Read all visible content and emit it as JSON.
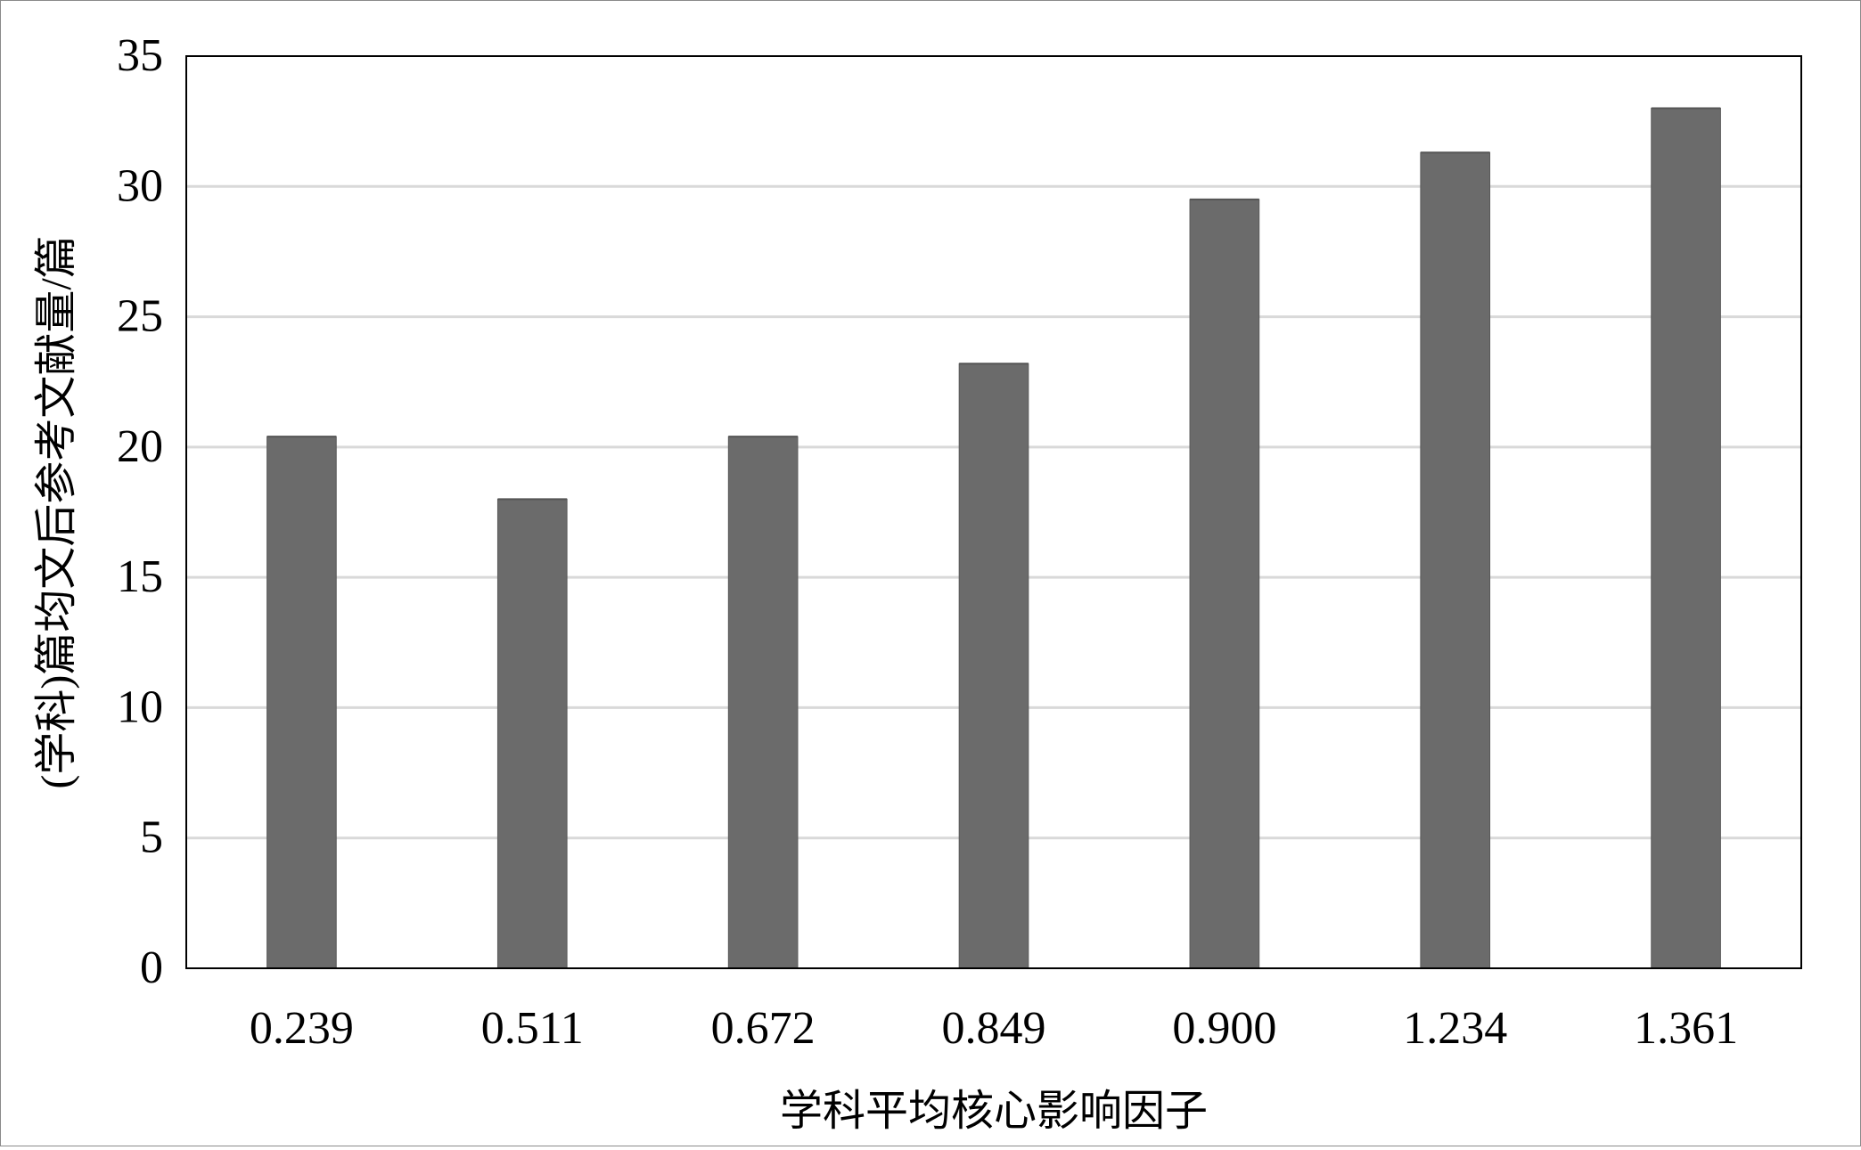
{
  "chart_data": {
    "type": "bar",
    "title": "",
    "xlabel": "学科平均核心影响因子",
    "ylabel": "(学科)篇均文后参考文献量/篇",
    "categories": [
      "0.239",
      "0.511",
      "0.672",
      "0.849",
      "0.900",
      "1.234",
      "1.361"
    ],
    "series": [
      {
        "values": [
          20.4,
          18.0,
          20.4,
          23.2,
          29.5,
          31.3,
          33.0
        ]
      }
    ],
    "ylim": [
      0,
      35
    ],
    "yticks": [
      0,
      5,
      10,
      15,
      20,
      25,
      30,
      35
    ],
    "grid": true,
    "legend": "none",
    "colors": {
      "bar": "#6b6b6b",
      "grid": "#d9d9d9",
      "axis": "#000000"
    }
  }
}
